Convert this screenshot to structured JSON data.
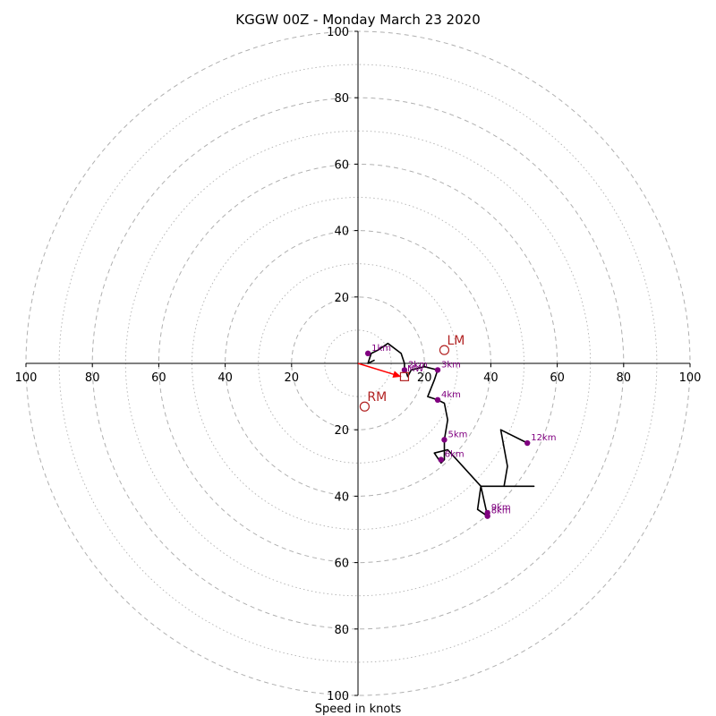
{
  "chart_data": {
    "type": "hodograph",
    "title": "KGGW 00Z - Monday March 23 2020",
    "xlabel": "Speed in knots",
    "ylabel": "",
    "xlim": [
      -100,
      100
    ],
    "ylim": [
      -100,
      100
    ],
    "ring_interval_major": 20,
    "ring_interval_minor": 10,
    "grid": true,
    "tick_labels": {
      "x_left": [
        "100",
        "80",
        "60",
        "40",
        "20"
      ],
      "x_right": [
        "20",
        "40",
        "60",
        "80",
        "100"
      ],
      "y_top": [
        "100",
        "80",
        "60",
        "40",
        "20"
      ],
      "y_bottom": [
        "20",
        "40",
        "60",
        "80",
        "100"
      ]
    },
    "tick_values": {
      "x_left": [
        -100,
        -80,
        -60,
        -40,
        -20
      ],
      "x_right": [
        20,
        40,
        60,
        80,
        100
      ],
      "y_top": [
        100,
        80,
        60,
        40,
        20
      ],
      "y_bottom": [
        -20,
        -40,
        -60,
        -80,
        -100
      ]
    },
    "hodograph_trace": [
      [
        5,
        1
      ],
      [
        3,
        0
      ],
      [
        4,
        3
      ],
      [
        6,
        4
      ],
      [
        9,
        6
      ],
      [
        13,
        3
      ],
      [
        14,
        0
      ],
      [
        14,
        -1
      ],
      [
        15,
        -4
      ],
      [
        16,
        -2
      ],
      [
        20,
        -1
      ],
      [
        24,
        -2
      ],
      [
        23,
        -5
      ],
      [
        21,
        -10
      ],
      [
        24,
        -11
      ],
      [
        26,
        -12
      ],
      [
        27,
        -17
      ],
      [
        26,
        -23
      ],
      [
        26,
        -25
      ],
      [
        26,
        -29
      ],
      [
        25,
        -30
      ],
      [
        23,
        -27
      ],
      [
        27,
        -26
      ],
      [
        37,
        -37
      ],
      [
        39,
        -46
      ],
      [
        36,
        -44
      ],
      [
        37,
        -37
      ],
      [
        53,
        -37
      ],
      [
        44,
        -37
      ],
      [
        45,
        -31
      ],
      [
        43,
        -20
      ],
      [
        51,
        -24
      ]
    ],
    "height_markers": [
      {
        "label": "1km",
        "u": 3,
        "v": 3
      },
      {
        "label": "2km",
        "u": 14,
        "v": -2
      },
      {
        "label": "3km",
        "u": 24,
        "v": -2
      },
      {
        "label": "4km",
        "u": 24,
        "v": -11
      },
      {
        "label": "5km",
        "u": 26,
        "v": -23
      },
      {
        "label": "6km",
        "u": 25,
        "v": -29
      },
      {
        "label": "9km",
        "u": 39,
        "v": -45
      },
      {
        "label": "8km",
        "u": 39,
        "v": -46
      },
      {
        "label": "12km",
        "u": 51,
        "v": -24
      }
    ],
    "storm_motions": [
      {
        "label": "LM",
        "u": 26,
        "v": 4,
        "marker": "circle"
      },
      {
        "label": "RM",
        "u": 2,
        "v": -13,
        "marker": "circle"
      },
      {
        "label": "MW",
        "u": 14,
        "v": -4,
        "marker": "square"
      }
    ],
    "shear_arrow": {
      "from": [
        0,
        0
      ],
      "to": [
        13,
        -4
      ]
    },
    "colors": {
      "trace": "#000000",
      "markers": "#800080",
      "storm_motion": "#b22222",
      "arrow": "#ff0000",
      "grid": "#b0b0b0",
      "axes": "#000000"
    }
  }
}
